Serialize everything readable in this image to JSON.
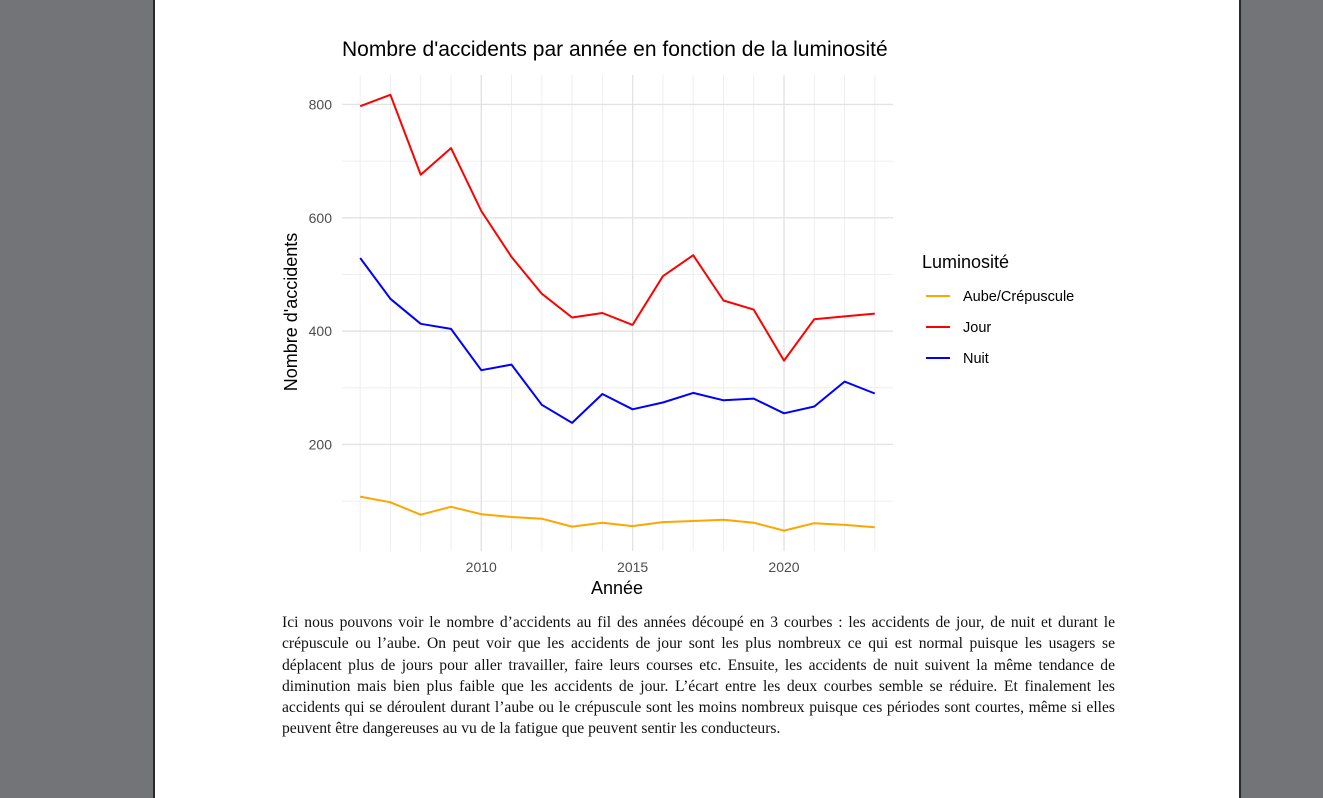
{
  "chart_data": {
    "type": "line",
    "title": "Nombre d'accidents par année en fonction de la luminosité",
    "xlabel": "Année",
    "ylabel": "Nombre d'accidents",
    "xlim": [
      2005.4,
      2023.6
    ],
    "ylim": [
      12,
      852
    ],
    "x_ticks": [
      2010,
      2015,
      2020
    ],
    "y_ticks": [
      200,
      400,
      600,
      800
    ],
    "grid": true,
    "legend": {
      "title": "Luminosité",
      "position": "right"
    },
    "x": [
      2006,
      2007,
      2008,
      2009,
      2010,
      2011,
      2012,
      2013,
      2014,
      2015,
      2016,
      2017,
      2018,
      2019,
      2020,
      2021,
      2022,
      2023
    ],
    "series": [
      {
        "name": "Aube/Crépuscule",
        "color": "#FFA500",
        "values": [
          108,
          98,
          76,
          90,
          77,
          72,
          69,
          55,
          62,
          56,
          63,
          65,
          67,
          62,
          48,
          61,
          58,
          54
        ]
      },
      {
        "name": "Jour",
        "color": "#FF0000",
        "values": [
          797,
          817,
          676,
          723,
          612,
          531,
          466,
          424,
          432,
          411,
          497,
          534,
          454,
          438,
          348,
          421,
          426,
          431
        ]
      },
      {
        "name": "Nuit",
        "color": "#0000FF",
        "values": [
          529,
          457,
          413,
          404,
          331,
          341,
          270,
          238,
          289,
          262,
          274,
          291,
          278,
          281,
          255,
          267,
          311,
          290
        ]
      }
    ]
  },
  "paragraph": "Ici nous pouvons voir le nombre d’accidents au fil des années découpé en 3 courbes : les accidents de jour, de nuit et durant le crépuscule ou l’aube. On peut voir que les accidents de jour sont les plus nombreux ce qui est normal puisque les usagers se déplacent plus de jours pour aller travailler, faire leurs courses etc. Ensuite, les accidents de nuit suivent la même tendance de diminution mais bien plus faible que les accidents de jour. L’écart entre les deux courbes semble se réduire. Et finalement les accidents qui se déroulent durant l’aube ou le crépuscule sont les moins nombreux puisque ces périodes sont courtes, même si elles peuvent être dangereuses au vu de la fatigue que peuvent sentir les conducteurs."
}
